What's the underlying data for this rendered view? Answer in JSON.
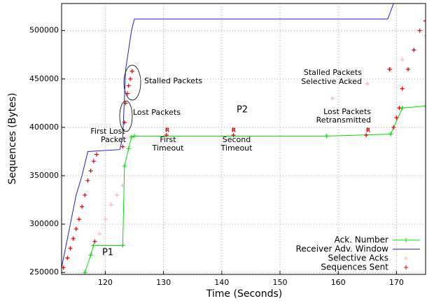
{
  "chart_data": {
    "type": "line",
    "x_label": "Time (Seconds)",
    "y_label": "Sequences (Bytes)",
    "xlim": [
      112.5,
      175
    ],
    "ylim": [
      248000,
      528000
    ],
    "xticks": [
      120,
      130,
      140,
      150,
      160,
      170
    ],
    "yticks": [
      250000,
      300000,
      350000,
      400000,
      450000,
      500000
    ],
    "grid": true,
    "legend": "lower right",
    "series": [
      {
        "name": "Ack. Number",
        "color": "#00e000",
        "style": "linespoints",
        "x": [
          116.5,
          117.5,
          118,
          123,
          123.3,
          124,
          124.5,
          125,
          158,
          169,
          171,
          175
        ],
        "values": [
          250000,
          268000,
          278000,
          278000,
          360000,
          378000,
          390000,
          391000,
          391000,
          393000,
          420000,
          422000
        ]
      },
      {
        "name": "Receiver Adv. Window",
        "color": "#2020c0",
        "style": "line",
        "x": [
          112.5,
          115,
          116,
          117,
          122.5,
          123,
          123.5,
          124.5,
          125,
          168.5,
          169.5
        ],
        "values": [
          255000,
          330000,
          350000,
          375000,
          377000,
          390000,
          460000,
          500000,
          512000,
          512000,
          528000
        ]
      },
      {
        "name": "Selective Acks",
        "color": "#f4b8b8",
        "style": "points",
        "x": [
          119,
          120,
          121,
          122,
          123,
          159,
          165,
          169,
          171,
          173,
          175
        ],
        "values": [
          290000,
          305000,
          320000,
          330000,
          340000,
          430000,
          445000,
          460000,
          470000,
          480000,
          495000
        ]
      },
      {
        "name": "Sequences Sent",
        "color": "#e00000",
        "style": "points",
        "x": [
          112.8,
          113.5,
          114,
          114.5,
          115,
          115.5,
          116,
          116.5,
          117,
          117.5,
          118,
          118.5,
          118.2,
          123,
          123.3,
          123.5,
          123.8,
          124,
          124.3,
          124.6,
          130.5,
          142,
          164.8,
          168.8,
          169.5,
          170,
          170.5,
          171,
          172,
          173,
          174,
          175
        ],
        "values": [
          255000,
          265000,
          275000,
          285000,
          295000,
          305000,
          318000,
          330000,
          345000,
          355000,
          365000,
          372000,
          282000,
          380000,
          405000,
          425000,
          435000,
          443000,
          450000,
          458000,
          392000,
          392000,
          392000,
          460000,
          400000,
          410000,
          420000,
          440000,
          460000,
          480000,
          500000,
          510000
        ]
      }
    ],
    "annotations": [
      [
        "Stalled Packets"
      ],
      [
        "Lost Packets"
      ],
      [
        "First Lost",
        "Packet"
      ],
      [
        "First",
        "Timeout"
      ],
      [
        "Second",
        "Timeout"
      ],
      [
        "Stalled Packets",
        "Selective Acked"
      ],
      [
        "Lost Packets",
        "Retransmitted"
      ],
      [
        "P1"
      ],
      [
        "P2"
      ],
      [
        "R"
      ],
      [
        "R"
      ],
      [
        "R"
      ]
    ]
  }
}
